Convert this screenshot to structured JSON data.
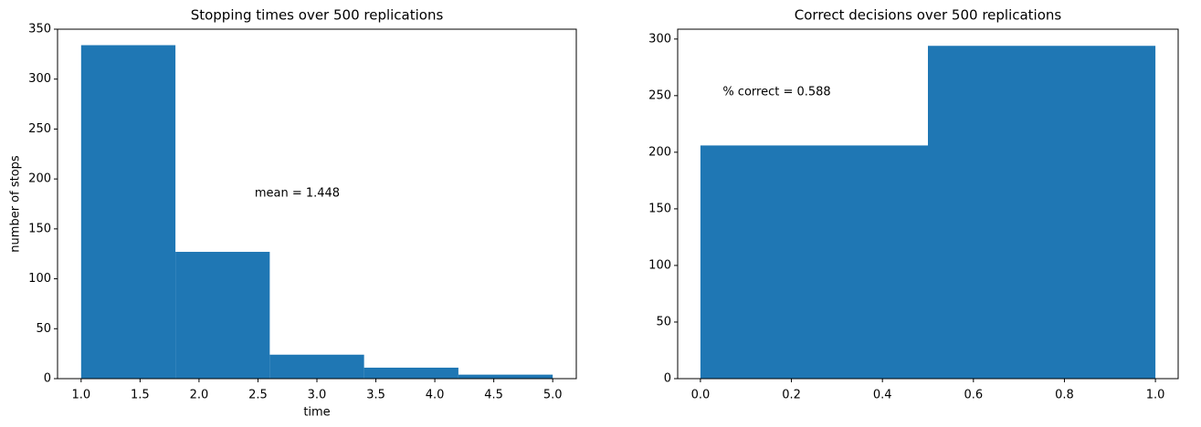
{
  "chart_data": [
    {
      "type": "histogram",
      "title": "Stopping times over 500 replications",
      "x_label": "time",
      "y_label": "number of stops",
      "bins": [
        1.0,
        1.8,
        2.6,
        3.4,
        4.2,
        5.0
      ],
      "values": [
        334,
        127,
        24,
        11,
        4
      ],
      "color": "#1f77b4",
      "xlim": [
        0.8,
        5.2
      ],
      "ylim": [
        0,
        350
      ],
      "xticks": [
        {
          "value": 1.0,
          "label": "1.0"
        },
        {
          "value": 1.5,
          "label": "1.5"
        },
        {
          "value": 2.0,
          "label": "2.0"
        },
        {
          "value": 2.5,
          "label": "2.5"
        },
        {
          "value": 3.0,
          "label": "3.0"
        },
        {
          "value": 3.5,
          "label": "3.5"
        },
        {
          "value": 4.0,
          "label": "4.0"
        },
        {
          "value": 4.5,
          "label": "4.5"
        },
        {
          "value": 5.0,
          "label": "5.0"
        }
      ],
      "yticks": [
        0,
        50,
        100,
        150,
        200,
        250,
        300,
        350
      ],
      "annotation": "mean = 1.448"
    },
    {
      "type": "histogram",
      "title": "Correct decisions over 500 replications",
      "bins": [
        0.0,
        0.5,
        1.0
      ],
      "values": [
        206,
        294
      ],
      "color": "#1f77b4",
      "xlim": [
        -0.05,
        1.05
      ],
      "ylim": [
        0,
        308.7
      ],
      "xticks": [
        {
          "value": 0.0,
          "label": "0.0"
        },
        {
          "value": 0.2,
          "label": "0.2"
        },
        {
          "value": 0.4,
          "label": "0.4"
        },
        {
          "value": 0.6,
          "label": "0.6"
        },
        {
          "value": 0.8,
          "label": "0.8"
        },
        {
          "value": 1.0,
          "label": "1.0"
        }
      ],
      "yticks": [
        0,
        50,
        100,
        150,
        200,
        250,
        300
      ],
      "annotation": "% correct = 0.588"
    }
  ]
}
